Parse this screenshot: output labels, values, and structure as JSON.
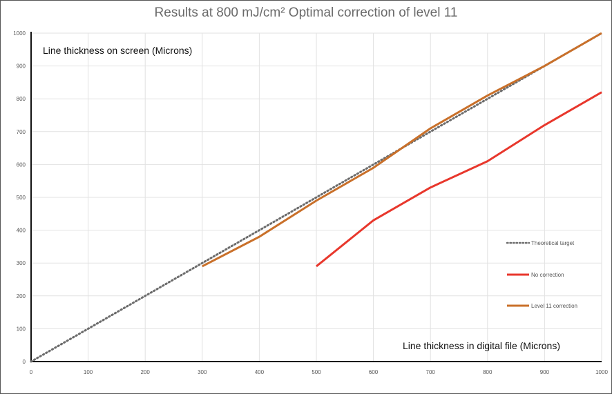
{
  "chart_data": {
    "type": "line",
    "title": "Results at 800 mJ/cm² Optimal correction of level 11",
    "ylabel": "Line thickness on screen (Microns)",
    "xlabel": "Line thickness in digital file (Microns)",
    "xlim": [
      0,
      1000
    ],
    "ylim": [
      0,
      1000
    ],
    "xticks": [
      0,
      100,
      200,
      300,
      400,
      500,
      600,
      700,
      800,
      900,
      1000
    ],
    "yticks": [
      0,
      100,
      200,
      300,
      400,
      500,
      600,
      700,
      800,
      900,
      1000
    ],
    "grid": true,
    "legend_position": "right",
    "series": [
      {
        "name": "Theoretical target",
        "style": "dotted",
        "color": "#6b6b6b",
        "x": [
          0,
          100,
          200,
          300,
          400,
          500,
          600,
          700,
          800,
          900,
          1000
        ],
        "y": [
          0,
          100,
          200,
          300,
          400,
          500,
          600,
          700,
          800,
          900,
          1000
        ]
      },
      {
        "name": "No correction",
        "style": "solid",
        "color": "#e8372c",
        "x": [
          500,
          600,
          700,
          800,
          900,
          1000
        ],
        "y": [
          290,
          430,
          530,
          610,
          720,
          820
        ]
      },
      {
        "name": "Level 11 correction",
        "style": "solid",
        "color": "#c9702a",
        "x": [
          300,
          400,
          500,
          600,
          700,
          800,
          900,
          1000
        ],
        "y": [
          290,
          380,
          490,
          590,
          710,
          810,
          900,
          1000
        ]
      }
    ]
  }
}
